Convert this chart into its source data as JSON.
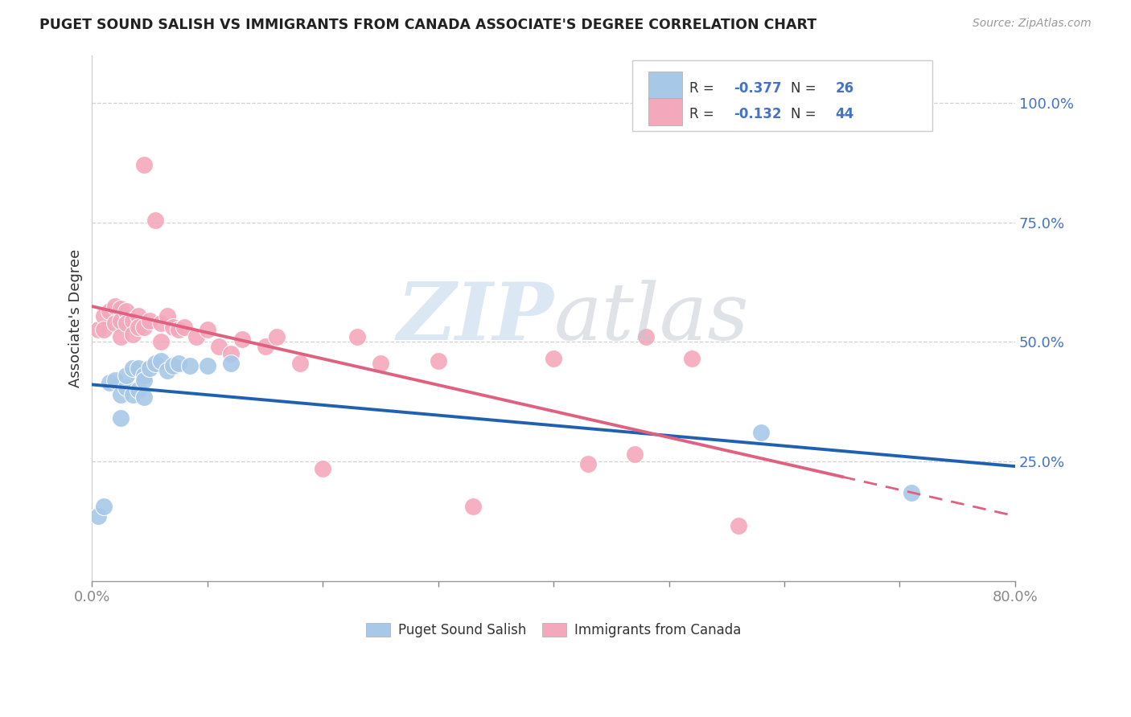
{
  "title": "PUGET SOUND SALISH VS IMMIGRANTS FROM CANADA ASSOCIATE'S DEGREE CORRELATION CHART",
  "source": "Source: ZipAtlas.com",
  "ylabel": "Associate's Degree",
  "ytick_labels": [
    "25.0%",
    "50.0%",
    "75.0%",
    "100.0%"
  ],
  "ytick_values": [
    0.25,
    0.5,
    0.75,
    1.0
  ],
  "xlim": [
    0.0,
    0.8
  ],
  "ylim": [
    0.0,
    1.1
  ],
  "legend1_label": "Puget Sound Salish",
  "legend2_label": "Immigrants from Canada",
  "R1": "-0.377",
  "N1": "26",
  "R2": "-0.132",
  "N2": "44",
  "blue_color": "#a8c8e8",
  "pink_color": "#f4a8bc",
  "blue_line_color": "#2060b0",
  "pink_line_color": "#e06080",
  "blue_scatter_x": [
    0.005,
    0.01,
    0.015,
    0.02,
    0.025,
    0.025,
    0.03,
    0.03,
    0.035,
    0.035,
    0.04,
    0.04,
    0.045,
    0.045,
    0.045,
    0.05,
    0.055,
    0.06,
    0.065,
    0.07,
    0.075,
    0.085,
    0.1,
    0.12,
    0.58,
    0.71
  ],
  "blue_scatter_y": [
    0.135,
    0.155,
    0.415,
    0.42,
    0.39,
    0.34,
    0.405,
    0.43,
    0.39,
    0.445,
    0.445,
    0.4,
    0.43,
    0.42,
    0.385,
    0.445,
    0.455,
    0.46,
    0.44,
    0.45,
    0.455,
    0.45,
    0.45,
    0.455,
    0.31,
    0.185
  ],
  "pink_scatter_x": [
    0.005,
    0.01,
    0.01,
    0.015,
    0.02,
    0.02,
    0.025,
    0.025,
    0.025,
    0.03,
    0.03,
    0.035,
    0.035,
    0.04,
    0.04,
    0.045,
    0.045,
    0.05,
    0.055,
    0.06,
    0.06,
    0.065,
    0.07,
    0.075,
    0.08,
    0.09,
    0.1,
    0.11,
    0.12,
    0.13,
    0.15,
    0.16,
    0.18,
    0.2,
    0.23,
    0.25,
    0.3,
    0.33,
    0.4,
    0.43,
    0.47,
    0.48,
    0.52,
    0.56
  ],
  "pink_scatter_y": [
    0.525,
    0.555,
    0.525,
    0.565,
    0.575,
    0.54,
    0.57,
    0.545,
    0.51,
    0.565,
    0.54,
    0.545,
    0.515,
    0.555,
    0.53,
    0.53,
    0.87,
    0.545,
    0.755,
    0.54,
    0.5,
    0.555,
    0.53,
    0.525,
    0.53,
    0.51,
    0.525,
    0.49,
    0.475,
    0.505,
    0.49,
    0.51,
    0.455,
    0.235,
    0.51,
    0.455,
    0.46,
    0.155,
    0.465,
    0.245,
    0.265,
    0.51,
    0.465,
    0.115
  ]
}
